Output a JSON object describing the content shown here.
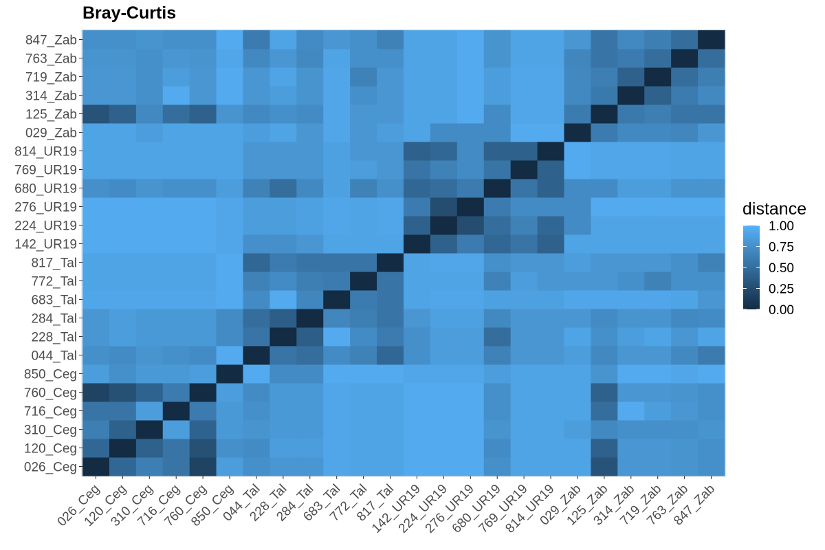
{
  "chart_data": {
    "type": "heatmap",
    "title": "Bray-Curtis",
    "legend": {
      "title": "distance",
      "position": "right",
      "breaks": [
        "1.00",
        "0.75",
        "0.50",
        "0.25",
        "0.00"
      ],
      "low_color": "#132B43",
      "high_color": "#56B1F7",
      "limits": [
        0,
        1
      ]
    },
    "grid": true,
    "labels": [
      "026_Ceg",
      "120_Ceg",
      "310_Ceg",
      "716_Ceg",
      "760_Ceg",
      "850_Ceg",
      "044_Tal",
      "228_Tal",
      "284_Tal",
      "683_Tal",
      "772_Tal",
      "817_Tal",
      "142_UR19",
      "224_UR19",
      "276_UR19",
      "680_UR19",
      "769_UR19",
      "814_UR19",
      "029_Zab",
      "125_Zab",
      "314_Zab",
      "719_Zab",
      "763_Zab",
      "847_Zab"
    ],
    "matrix": [
      [
        0.0,
        0.45,
        0.62,
        0.55,
        0.18,
        0.85,
        0.75,
        0.8,
        0.8,
        0.92,
        0.9,
        0.9,
        0.95,
        0.95,
        0.95,
        0.75,
        0.9,
        0.9,
        0.9,
        0.3,
        0.8,
        0.8,
        0.78,
        0.75
      ],
      [
        0.45,
        0.0,
        0.4,
        0.55,
        0.28,
        0.75,
        0.72,
        0.85,
        0.85,
        0.92,
        0.9,
        0.9,
        0.95,
        0.95,
        0.95,
        0.72,
        0.9,
        0.9,
        0.9,
        0.4,
        0.8,
        0.8,
        0.78,
        0.75
      ],
      [
        0.62,
        0.4,
        0.0,
        0.85,
        0.42,
        0.82,
        0.78,
        0.82,
        0.82,
        0.92,
        0.9,
        0.9,
        0.95,
        0.95,
        0.95,
        0.78,
        0.9,
        0.9,
        0.85,
        0.7,
        0.75,
        0.75,
        0.75,
        0.78
      ],
      [
        0.55,
        0.55,
        0.85,
        0.0,
        0.6,
        0.82,
        0.75,
        0.82,
        0.82,
        0.92,
        0.9,
        0.9,
        0.95,
        0.95,
        0.95,
        0.75,
        0.9,
        0.9,
        0.9,
        0.5,
        0.95,
        0.85,
        0.8,
        0.75
      ],
      [
        0.18,
        0.28,
        0.42,
        0.6,
        0.0,
        0.85,
        0.72,
        0.82,
        0.82,
        0.92,
        0.9,
        0.9,
        0.95,
        0.95,
        0.95,
        0.75,
        0.9,
        0.9,
        0.9,
        0.4,
        0.8,
        0.8,
        0.78,
        0.75
      ],
      [
        0.85,
        0.75,
        0.82,
        0.82,
        0.85,
        0.0,
        0.95,
        0.72,
        0.72,
        0.95,
        0.95,
        0.95,
        0.92,
        0.92,
        0.92,
        0.85,
        0.9,
        0.9,
        0.9,
        0.78,
        0.95,
        0.95,
        0.92,
        0.95
      ],
      [
        0.75,
        0.72,
        0.78,
        0.75,
        0.72,
        0.95,
        0.0,
        0.55,
        0.5,
        0.72,
        0.65,
        0.45,
        0.75,
        0.85,
        0.85,
        0.65,
        0.8,
        0.8,
        0.85,
        0.7,
        0.8,
        0.8,
        0.7,
        0.6
      ],
      [
        0.8,
        0.85,
        0.82,
        0.82,
        0.82,
        0.72,
        0.55,
        0.0,
        0.38,
        0.95,
        0.72,
        0.6,
        0.75,
        0.85,
        0.85,
        0.5,
        0.8,
        0.8,
        0.9,
        0.75,
        0.85,
        0.9,
        0.8,
        0.9
      ],
      [
        0.8,
        0.85,
        0.82,
        0.82,
        0.82,
        0.72,
        0.5,
        0.38,
        0.0,
        0.68,
        0.62,
        0.55,
        0.8,
        0.88,
        0.88,
        0.7,
        0.8,
        0.8,
        0.8,
        0.72,
        0.78,
        0.78,
        0.7,
        0.72
      ],
      [
        0.92,
        0.92,
        0.92,
        0.92,
        0.92,
        0.95,
        0.72,
        0.95,
        0.68,
        0.0,
        0.6,
        0.55,
        0.9,
        0.92,
        0.92,
        0.88,
        0.88,
        0.88,
        0.92,
        0.92,
        0.92,
        0.92,
        0.9,
        0.8
      ],
      [
        0.9,
        0.9,
        0.9,
        0.9,
        0.9,
        0.95,
        0.65,
        0.72,
        0.62,
        0.6,
        0.0,
        0.55,
        0.9,
        0.9,
        0.9,
        0.65,
        0.85,
        0.8,
        0.8,
        0.8,
        0.75,
        0.65,
        0.75,
        0.75
      ],
      [
        0.9,
        0.9,
        0.9,
        0.9,
        0.9,
        0.95,
        0.45,
        0.6,
        0.55,
        0.55,
        0.55,
        0.0,
        0.9,
        0.92,
        0.92,
        0.75,
        0.8,
        0.8,
        0.85,
        0.8,
        0.8,
        0.8,
        0.75,
        0.65
      ],
      [
        0.95,
        0.95,
        0.95,
        0.95,
        0.95,
        0.92,
        0.75,
        0.75,
        0.8,
        0.9,
        0.9,
        0.9,
        0.0,
        0.4,
        0.6,
        0.45,
        0.55,
        0.4,
        0.9,
        0.9,
        0.9,
        0.9,
        0.9,
        0.9
      ],
      [
        0.95,
        0.95,
        0.95,
        0.95,
        0.95,
        0.92,
        0.85,
        0.85,
        0.88,
        0.92,
        0.9,
        0.92,
        0.4,
        0.0,
        0.25,
        0.5,
        0.65,
        0.45,
        0.72,
        0.9,
        0.9,
        0.9,
        0.9,
        0.9
      ],
      [
        0.95,
        0.95,
        0.95,
        0.95,
        0.95,
        0.92,
        0.85,
        0.85,
        0.88,
        0.92,
        0.9,
        0.92,
        0.6,
        0.25,
        0.0,
        0.6,
        0.72,
        0.72,
        0.72,
        0.95,
        0.95,
        0.95,
        0.95,
        0.95
      ],
      [
        0.75,
        0.72,
        0.78,
        0.75,
        0.75,
        0.85,
        0.65,
        0.5,
        0.7,
        0.88,
        0.65,
        0.75,
        0.45,
        0.5,
        0.6,
        0.0,
        0.55,
        0.4,
        0.72,
        0.72,
        0.85,
        0.85,
        0.78,
        0.78
      ],
      [
        0.9,
        0.9,
        0.9,
        0.9,
        0.9,
        0.9,
        0.8,
        0.8,
        0.8,
        0.88,
        0.85,
        0.8,
        0.55,
        0.65,
        0.72,
        0.55,
        0.0,
        0.4,
        0.95,
        0.92,
        0.92,
        0.92,
        0.9,
        0.9
      ],
      [
        0.9,
        0.9,
        0.9,
        0.9,
        0.9,
        0.9,
        0.8,
        0.8,
        0.8,
        0.88,
        0.8,
        0.8,
        0.4,
        0.45,
        0.72,
        0.4,
        0.4,
        0.0,
        0.95,
        0.92,
        0.92,
        0.92,
        0.9,
        0.9
      ],
      [
        0.9,
        0.9,
        0.85,
        0.9,
        0.9,
        0.9,
        0.85,
        0.9,
        0.8,
        0.92,
        0.8,
        0.85,
        0.9,
        0.72,
        0.72,
        0.72,
        0.95,
        0.95,
        0.0,
        0.6,
        0.7,
        0.7,
        0.68,
        0.8
      ],
      [
        0.3,
        0.4,
        0.7,
        0.5,
        0.4,
        0.78,
        0.7,
        0.75,
        0.72,
        0.92,
        0.8,
        0.8,
        0.9,
        0.9,
        0.95,
        0.72,
        0.92,
        0.92,
        0.6,
        0.0,
        0.58,
        0.62,
        0.55,
        0.55
      ],
      [
        0.8,
        0.8,
        0.75,
        0.95,
        0.8,
        0.95,
        0.8,
        0.85,
        0.78,
        0.92,
        0.75,
        0.8,
        0.9,
        0.9,
        0.95,
        0.85,
        0.92,
        0.92,
        0.7,
        0.58,
        0.0,
        0.4,
        0.6,
        0.7
      ],
      [
        0.8,
        0.8,
        0.75,
        0.85,
        0.8,
        0.95,
        0.8,
        0.9,
        0.78,
        0.92,
        0.65,
        0.8,
        0.9,
        0.9,
        0.95,
        0.85,
        0.92,
        0.92,
        0.7,
        0.62,
        0.4,
        0.0,
        0.5,
        0.62
      ],
      [
        0.78,
        0.78,
        0.75,
        0.8,
        0.78,
        0.92,
        0.7,
        0.8,
        0.7,
        0.9,
        0.75,
        0.75,
        0.9,
        0.9,
        0.95,
        0.78,
        0.9,
        0.9,
        0.68,
        0.55,
        0.6,
        0.5,
        0.0,
        0.5
      ],
      [
        0.75,
        0.75,
        0.78,
        0.75,
        0.75,
        0.95,
        0.6,
        0.9,
        0.72,
        0.8,
        0.75,
        0.65,
        0.9,
        0.9,
        0.95,
        0.78,
        0.9,
        0.9,
        0.8,
        0.55,
        0.7,
        0.62,
        0.5,
        0.0
      ]
    ]
  }
}
